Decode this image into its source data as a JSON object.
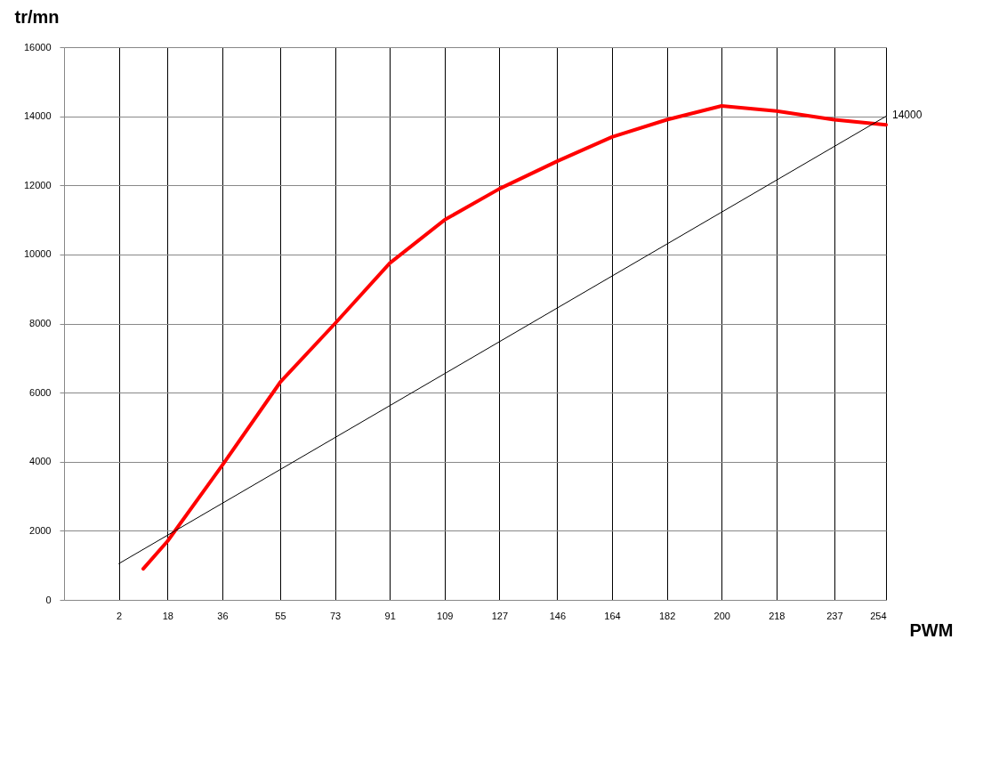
{
  "chart_data": {
    "type": "line",
    "xlabel": "PWM",
    "ylabel": "tr/mn",
    "xlim": [
      -16,
      254
    ],
    "xticks": [
      2,
      18,
      36,
      55,
      73,
      91,
      109,
      127,
      146,
      164,
      182,
      200,
      218,
      237,
      254
    ],
    "ylim": [
      0,
      16000
    ],
    "yticks": [
      0,
      2000,
      4000,
      6000,
      8000,
      10000,
      12000,
      14000,
      16000
    ],
    "grid": true,
    "series": [
      {
        "color": "#ff0000",
        "x": [
          10,
          18,
          36,
          55,
          73,
          91,
          109,
          127,
          146,
          164,
          182,
          200,
          218,
          237,
          254
        ],
        "values": [
          900,
          1700,
          3900,
          6300,
          8000,
          9750,
          11000,
          11900,
          12700,
          13400,
          13900,
          14300,
          14150,
          13900,
          13750
        ]
      },
      {
        "type": "line",
        "color": "#000000",
        "x": [
          2,
          254
        ],
        "values": [
          1050,
          14000
        ]
      }
    ],
    "annotations": [
      {
        "text": "14000",
        "x": 254,
        "y": 14000
      }
    ]
  }
}
